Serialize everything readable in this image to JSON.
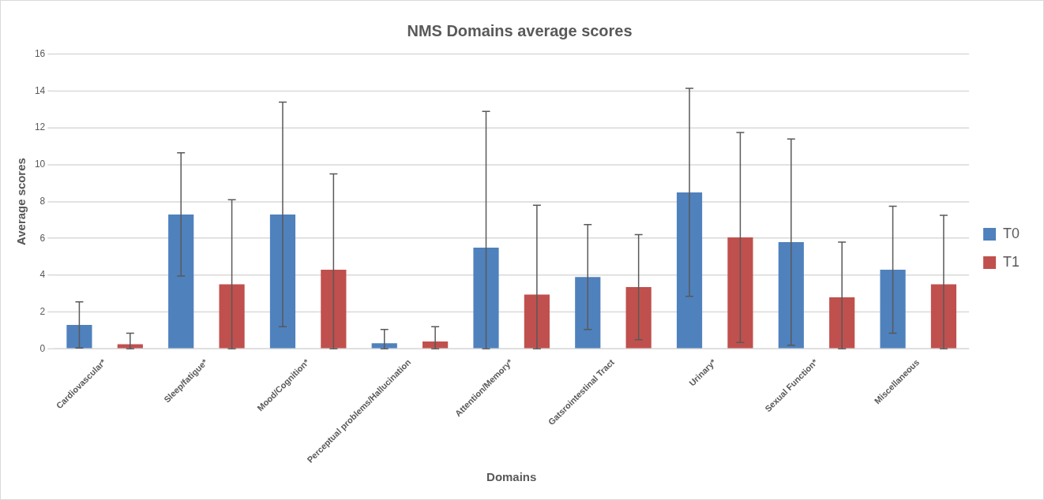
{
  "chart_data": {
    "type": "bar",
    "title": "NMS Domains average scores",
    "xlabel": "Domains",
    "ylabel": "Average scores",
    "categories": [
      "Cardiovascular*",
      "Sleep/fatigue*",
      "Mood/Cognition*",
      "Perceptual problems/Hallucination",
      "Attention/Memory*",
      "Gatsrointestinal Tract",
      "Urinary*",
      "Sexual Function*",
      "Miscellaneous"
    ],
    "series": [
      {
        "name": "T0",
        "color": "#4f81bd",
        "values": [
          1.3,
          7.3,
          7.3,
          0.3,
          5.5,
          3.9,
          8.5,
          5.8,
          4.3
        ],
        "errors": [
          1.25,
          3.35,
          6.1,
          [
            0,
            1.05
          ],
          [
            0,
            12.9
          ],
          2.85,
          5.65,
          5.6,
          3.45
        ]
      },
      {
        "name": "T1",
        "color": "#c0504d",
        "values": [
          0.25,
          3.5,
          4.3,
          0.4,
          2.95,
          3.35,
          6.05,
          2.8,
          3.5
        ],
        "errors": [
          [
            0,
            0.85
          ],
          [
            0,
            8.1
          ],
          [
            0,
            9.5
          ],
          [
            0,
            1.2
          ],
          [
            0,
            7.8
          ],
          2.85,
          5.7,
          [
            0,
            5.8
          ],
          [
            0,
            7.25
          ]
        ]
      }
    ],
    "ylim": [
      0,
      16
    ],
    "yticks": [
      0,
      2,
      4,
      6,
      8,
      10,
      12,
      14,
      16
    ],
    "grid": "y",
    "legend": "right"
  }
}
